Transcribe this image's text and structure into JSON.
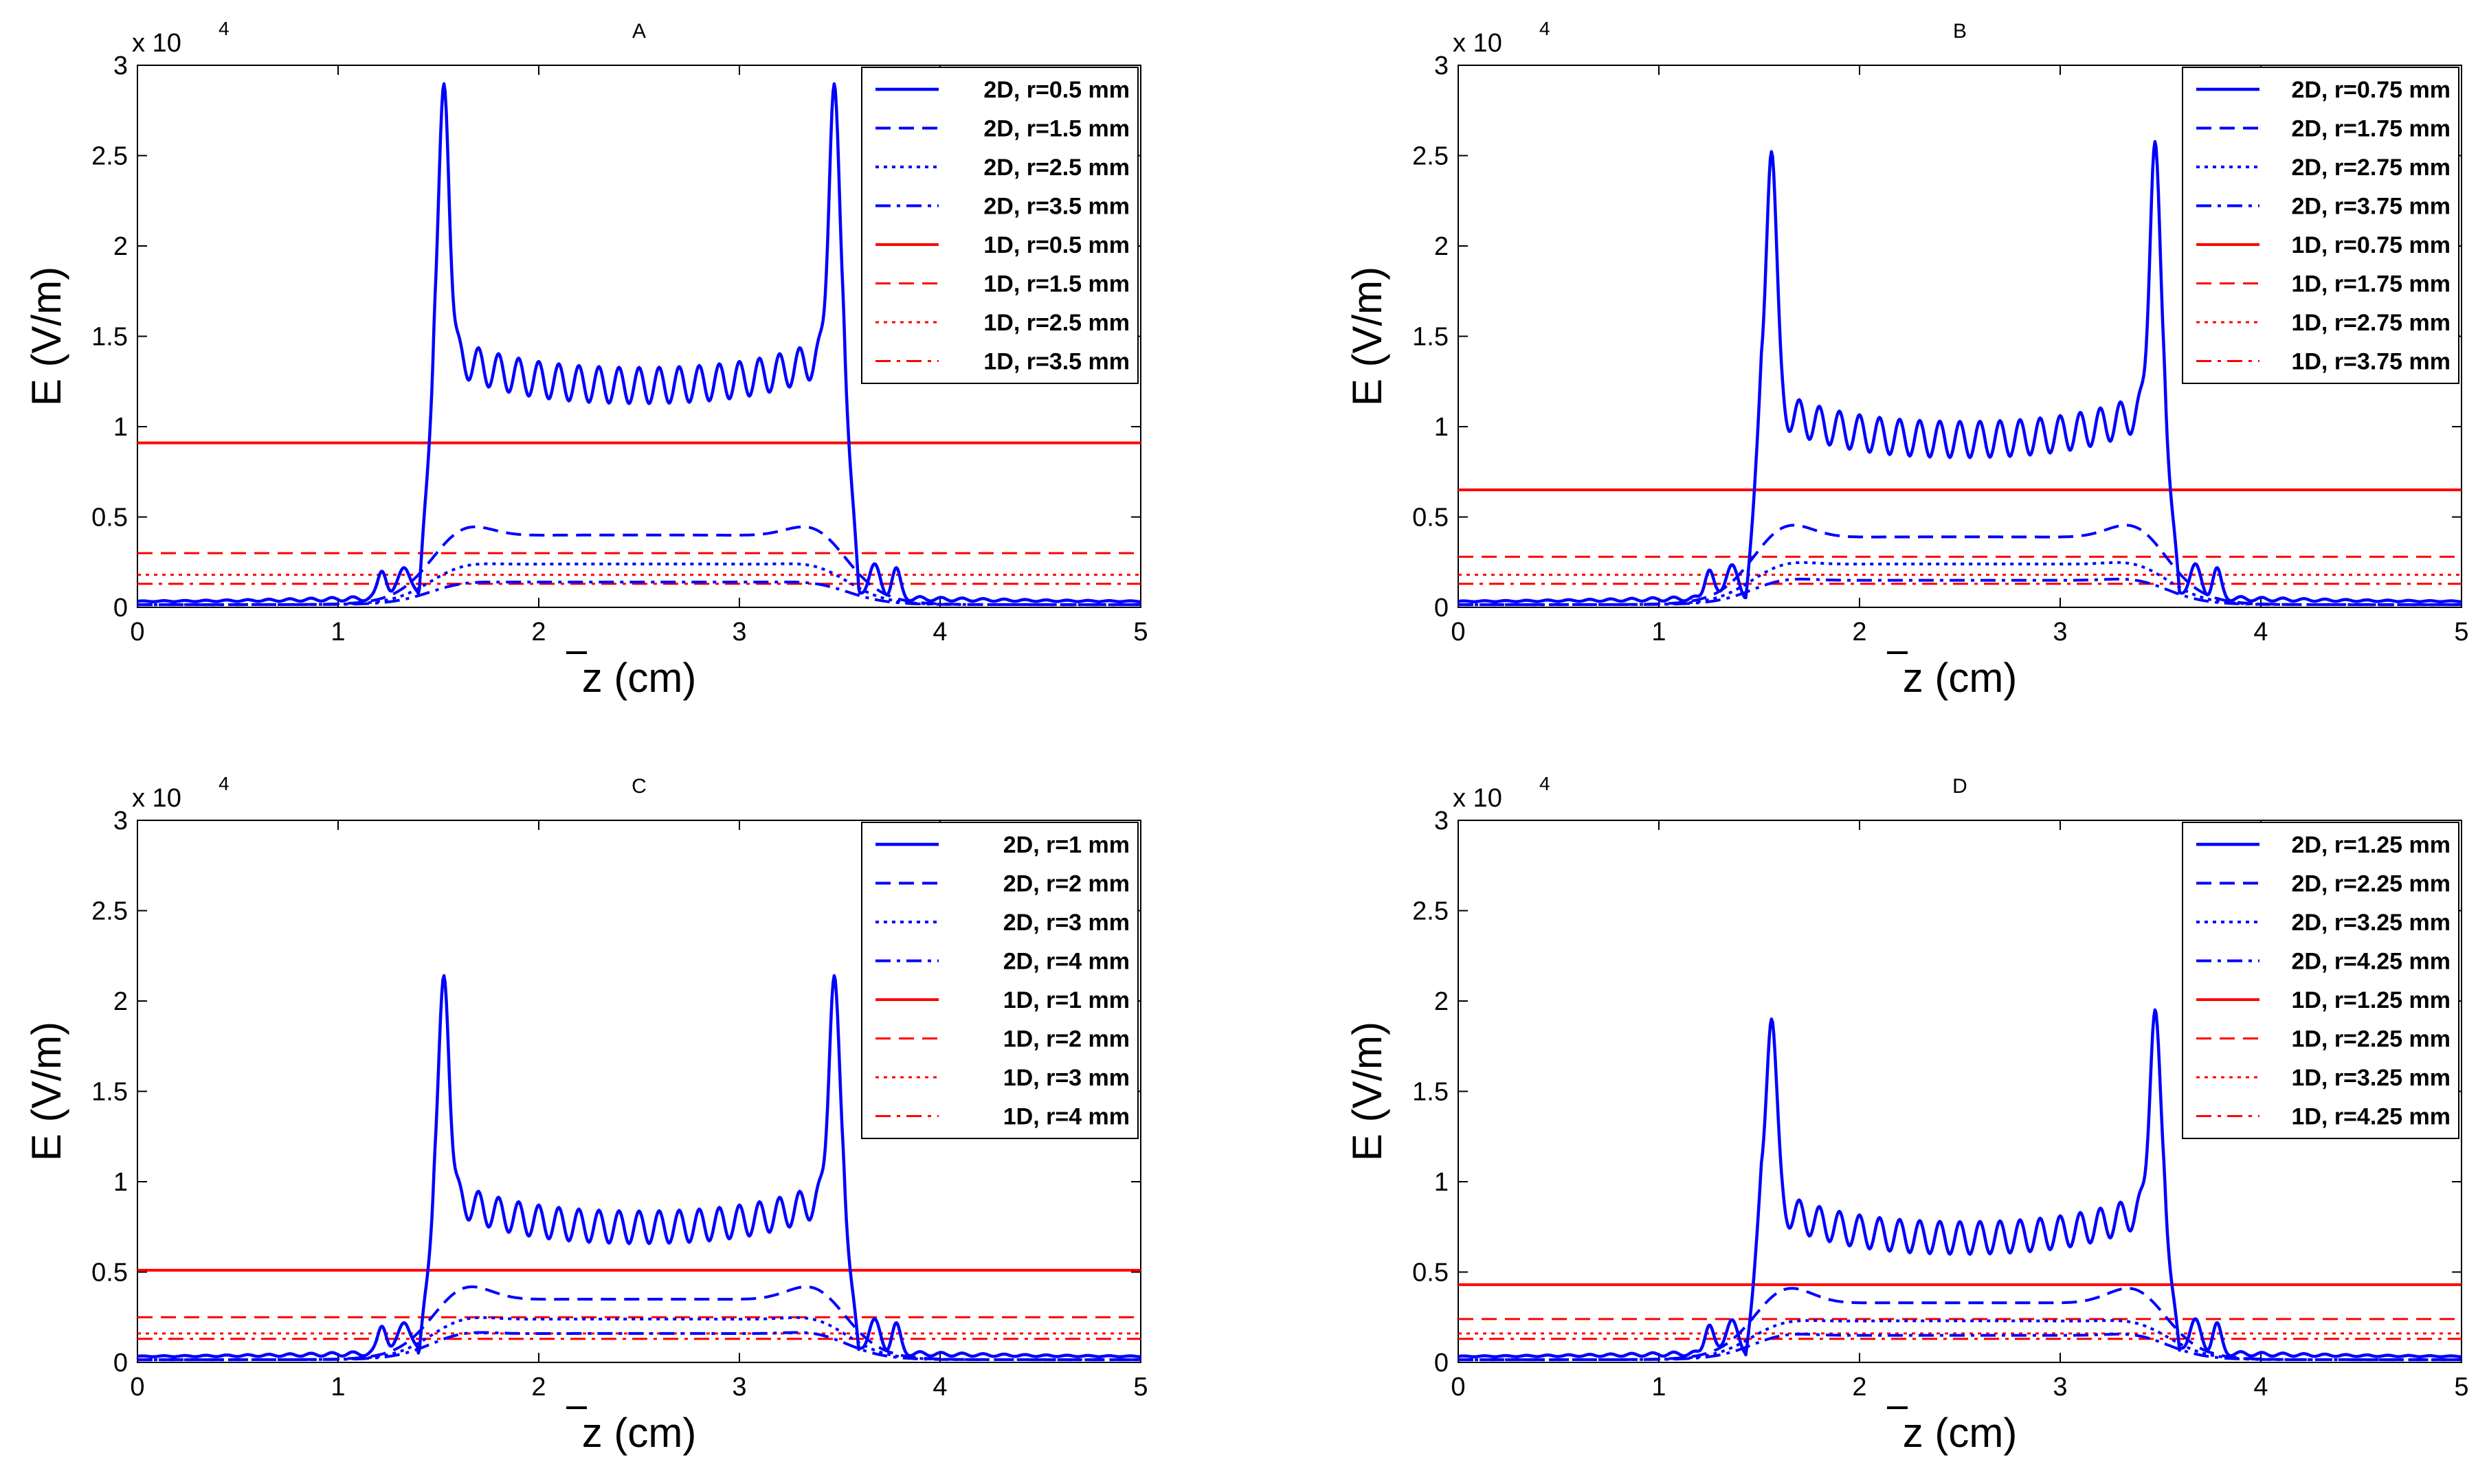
{
  "figure": {
    "colors": {
      "blue": "#0000ff",
      "red": "#ff0000",
      "axis": "#000000",
      "background": "#ffffff"
    }
  },
  "chart_data": [
    {
      "type": "line",
      "title": "A",
      "xlabel": "z (cm)",
      "ylabel": "E (V/m)",
      "exponent_prefix": "x 10",
      "exponent_power": "4",
      "xlim": [
        0,
        5
      ],
      "ylim": [
        0,
        30000
      ],
      "xticks": [
        "0",
        "1",
        "2",
        "3",
        "4",
        "5"
      ],
      "yticks": [
        "0",
        "0.5",
        "1",
        "1.5",
        "2",
        "2.5",
        "3"
      ],
      "legend_position": "top-right",
      "series_2d": [
        {
          "name": "2D, r=0.5 mm",
          "dash": "solid",
          "shoulder": 4800,
          "peak": 29200,
          "ripple_level": 12000,
          "ripple_amp": 1000,
          "edge_rise": 1.45,
          "edge_fall": 3.55
        },
        {
          "name": "2D, r=1.5 mm",
          "dash": "dashed",
          "shoulder": 4900,
          "plateau": 4000
        },
        {
          "name": "2D, r=2.5 mm",
          "dash": "dotted",
          "shoulder": 2600,
          "plateau": 2400
        },
        {
          "name": "2D, r=3.5 mm",
          "dash": "dashdot",
          "shoulder": 1500,
          "plateau": 1400
        }
      ],
      "series_1d": [
        {
          "name": "1D, r=0.5 mm",
          "dash": "solid",
          "value": 9100
        },
        {
          "name": "1D, r=1.5 mm",
          "dash": "dashed",
          "value": 3000
        },
        {
          "name": "1D, r=2.5 mm",
          "dash": "dotted",
          "value": 1800
        },
        {
          "name": "1D, r=3.5 mm",
          "dash": "dashdot",
          "value": 1300
        }
      ]
    },
    {
      "type": "line",
      "title": "B",
      "xlabel": "z (cm)",
      "ylabel": "E (V/m)",
      "exponent_prefix": "x 10",
      "exponent_power": "4",
      "xlim": [
        0,
        5
      ],
      "ylim": [
        0,
        30000
      ],
      "xticks": [
        "0",
        "1",
        "2",
        "3",
        "4",
        "5"
      ],
      "yticks": [
        "0",
        "0.5",
        "1",
        "1.5",
        "2",
        "2.5",
        "3"
      ],
      "legend_position": "top-right",
      "series_2d": [
        {
          "name": "2D, r=0.75 mm",
          "dash": "solid",
          "shoulder": 4800,
          "peak": 26000,
          "ripple_level": 9000,
          "ripple_amp": 1000,
          "edge_rise": 1.48,
          "edge_fall": 3.55
        },
        {
          "name": "2D, r=1.75 mm",
          "dash": "dashed",
          "shoulder": 5000,
          "plateau": 3900
        },
        {
          "name": "2D, r=2.75 mm",
          "dash": "dotted",
          "shoulder": 2700,
          "plateau": 2400
        },
        {
          "name": "2D, r=3.75 mm",
          "dash": "dashdot",
          "shoulder": 1700,
          "plateau": 1500
        }
      ],
      "series_1d": [
        {
          "name": "1D, r=0.75 mm",
          "dash": "solid",
          "value": 6500
        },
        {
          "name": "1D, r=1.75 mm",
          "dash": "dashed",
          "value": 2800
        },
        {
          "name": "1D, r=2.75 mm",
          "dash": "dotted",
          "value": 1800
        },
        {
          "name": "1D, r=3.75 mm",
          "dash": "dashdot",
          "value": 1300
        }
      ]
    },
    {
      "type": "line",
      "title": "C",
      "xlabel": "z (cm)",
      "ylabel": "E (V/m)",
      "exponent_prefix": "x 10",
      "exponent_power": "4",
      "xlim": [
        0,
        5
      ],
      "ylim": [
        0,
        30000
      ],
      "xticks": [
        "0",
        "1",
        "2",
        "3",
        "4",
        "5"
      ],
      "yticks": [
        "0",
        "0.5",
        "1",
        "1.5",
        "2",
        "2.5",
        "3"
      ],
      "legend_position": "top-right",
      "series_2d": [
        {
          "name": "2D, r=1 mm",
          "dash": "solid",
          "shoulder": 4500,
          "peak": 21600,
          "ripple_level": 7200,
          "ripple_amp": 900,
          "edge_rise": 1.45,
          "edge_fall": 3.55
        },
        {
          "name": "2D, r=2 mm",
          "dash": "dashed",
          "shoulder": 4600,
          "plateau": 3500
        },
        {
          "name": "2D, r=3 mm",
          "dash": "dotted",
          "shoulder": 2700,
          "plateau": 2400
        },
        {
          "name": "2D, r=4 mm",
          "dash": "dashdot",
          "shoulder": 1800,
          "plateau": 1600
        }
      ],
      "series_1d": [
        {
          "name": "1D, r=1 mm",
          "dash": "solid",
          "value": 5100
        },
        {
          "name": "1D, r=2 mm",
          "dash": "dashed",
          "value": 2500
        },
        {
          "name": "1D, r=3 mm",
          "dash": "dotted",
          "value": 1600
        },
        {
          "name": "1D, r=4 mm",
          "dash": "dashdot",
          "value": 1300
        }
      ]
    },
    {
      "type": "line",
      "title": "D",
      "xlabel": "z (cm)",
      "ylabel": "E (V/m)",
      "exponent_prefix": "x 10",
      "exponent_power": "4",
      "xlim": [
        0,
        5
      ],
      "ylim": [
        0,
        30000
      ],
      "xticks": [
        "0",
        "1",
        "2",
        "3",
        "4",
        "5"
      ],
      "yticks": [
        "0",
        "0.5",
        "1",
        "1.5",
        "2",
        "2.5",
        "3"
      ],
      "legend_position": "top-right",
      "series_2d": [
        {
          "name": "2D, r=1.25 mm",
          "dash": "solid",
          "shoulder": 4400,
          "peak": 19700,
          "ripple_level": 6600,
          "ripple_amp": 900,
          "edge_rise": 1.48,
          "edge_fall": 3.55
        },
        {
          "name": "2D, r=2.25 mm",
          "dash": "dashed",
          "shoulder": 4500,
          "plateau": 3300
        },
        {
          "name": "2D, r=3.25 mm",
          "dash": "dotted",
          "shoulder": 2500,
          "plateau": 2300
        },
        {
          "name": "2D, r=4.25 mm",
          "dash": "dashdot",
          "shoulder": 1700,
          "plateau": 1500
        }
      ],
      "series_1d": [
        {
          "name": "1D, r=1.25 mm",
          "dash": "solid",
          "value": 4300
        },
        {
          "name": "1D, r=2.25 mm",
          "dash": "dashed",
          "value": 2400
        },
        {
          "name": "1D, r=3.25 mm",
          "dash": "dotted",
          "value": 1600
        },
        {
          "name": "1D, r=4.25 mm",
          "dash": "dashdot",
          "value": 1300
        }
      ]
    }
  ]
}
